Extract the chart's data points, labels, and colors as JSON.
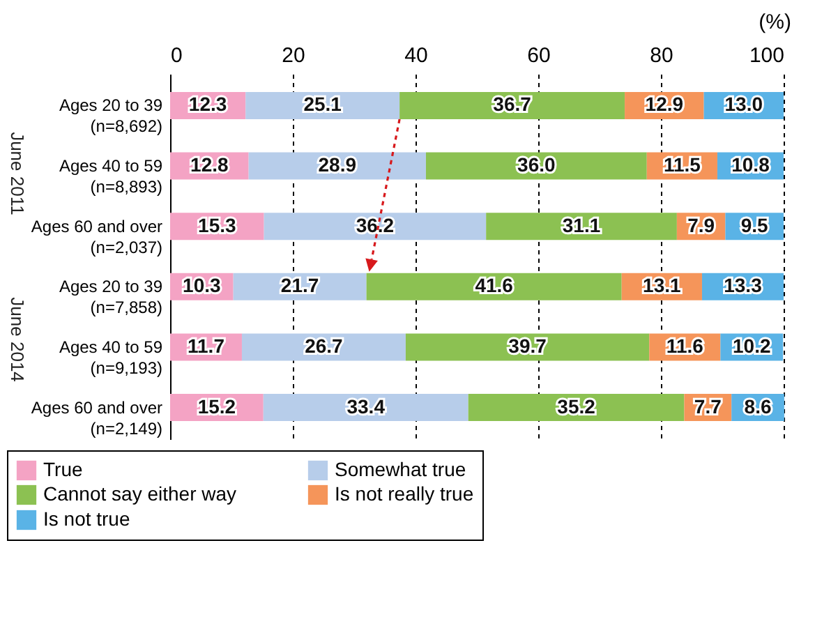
{
  "chart_data": {
    "type": "bar",
    "orientation": "horizontal",
    "stacked": true,
    "xlabel": "(%)",
    "categories": [
      "Ages 20 to 39\n(n=8,692)",
      "Ages 40 to 59\n(n=8,893)",
      "Ages 60 and over\n(n=2,037)",
      "Ages 20 to 39\n(n=7,858)",
      "Ages 40 to 59\n(n=9,193)",
      "Ages 60 and over\n(n=2,149)"
    ],
    "series": [
      {
        "name": "True",
        "color": "#f4a3c4",
        "values": [
          12.3,
          12.8,
          15.3,
          10.3,
          11.7,
          15.2
        ],
        "value_labels": [
          "12.3",
          "12.8",
          "15.3",
          "10.3",
          "11.7",
          "15.2"
        ]
      },
      {
        "name": "Somewhat true",
        "color": "#b7cdea",
        "values": [
          25.1,
          28.9,
          36.2,
          21.7,
          26.7,
          33.4
        ],
        "value_labels": [
          "25.1",
          "28.9",
          "36.2",
          "21.7",
          "26.7",
          "33.4"
        ]
      },
      {
        "name": "Cannot say either way",
        "color": "#8cc152",
        "values": [
          36.7,
          36.0,
          31.1,
          41.6,
          39.7,
          35.2
        ],
        "value_labels": [
          "36.7",
          "36.0",
          "31.1",
          "41.6",
          "39.7",
          "35.2"
        ]
      },
      {
        "name": "Is not really true",
        "color": "#f5955a",
        "values": [
          12.9,
          11.5,
          7.9,
          13.1,
          11.6,
          7.7
        ],
        "value_labels": [
          "12.9",
          "11.5",
          "7.9",
          "13.1",
          "11.6",
          "7.7"
        ]
      },
      {
        "name": "Is not true",
        "color": "#5ab3e6",
        "values": [
          13.0,
          10.8,
          9.5,
          13.3,
          10.2,
          8.6
        ],
        "value_labels": [
          "13.0",
          "10.8",
          "9.5",
          "13.3",
          "10.2",
          "8.6"
        ]
      }
    ],
    "xlim": [
      0,
      100
    ],
    "xticks": [
      0,
      20,
      40,
      60,
      80,
      100
    ],
    "grid": "x",
    "legend": "bottom",
    "annotations": [
      "June 2011",
      "June 2014"
    ]
  }
}
